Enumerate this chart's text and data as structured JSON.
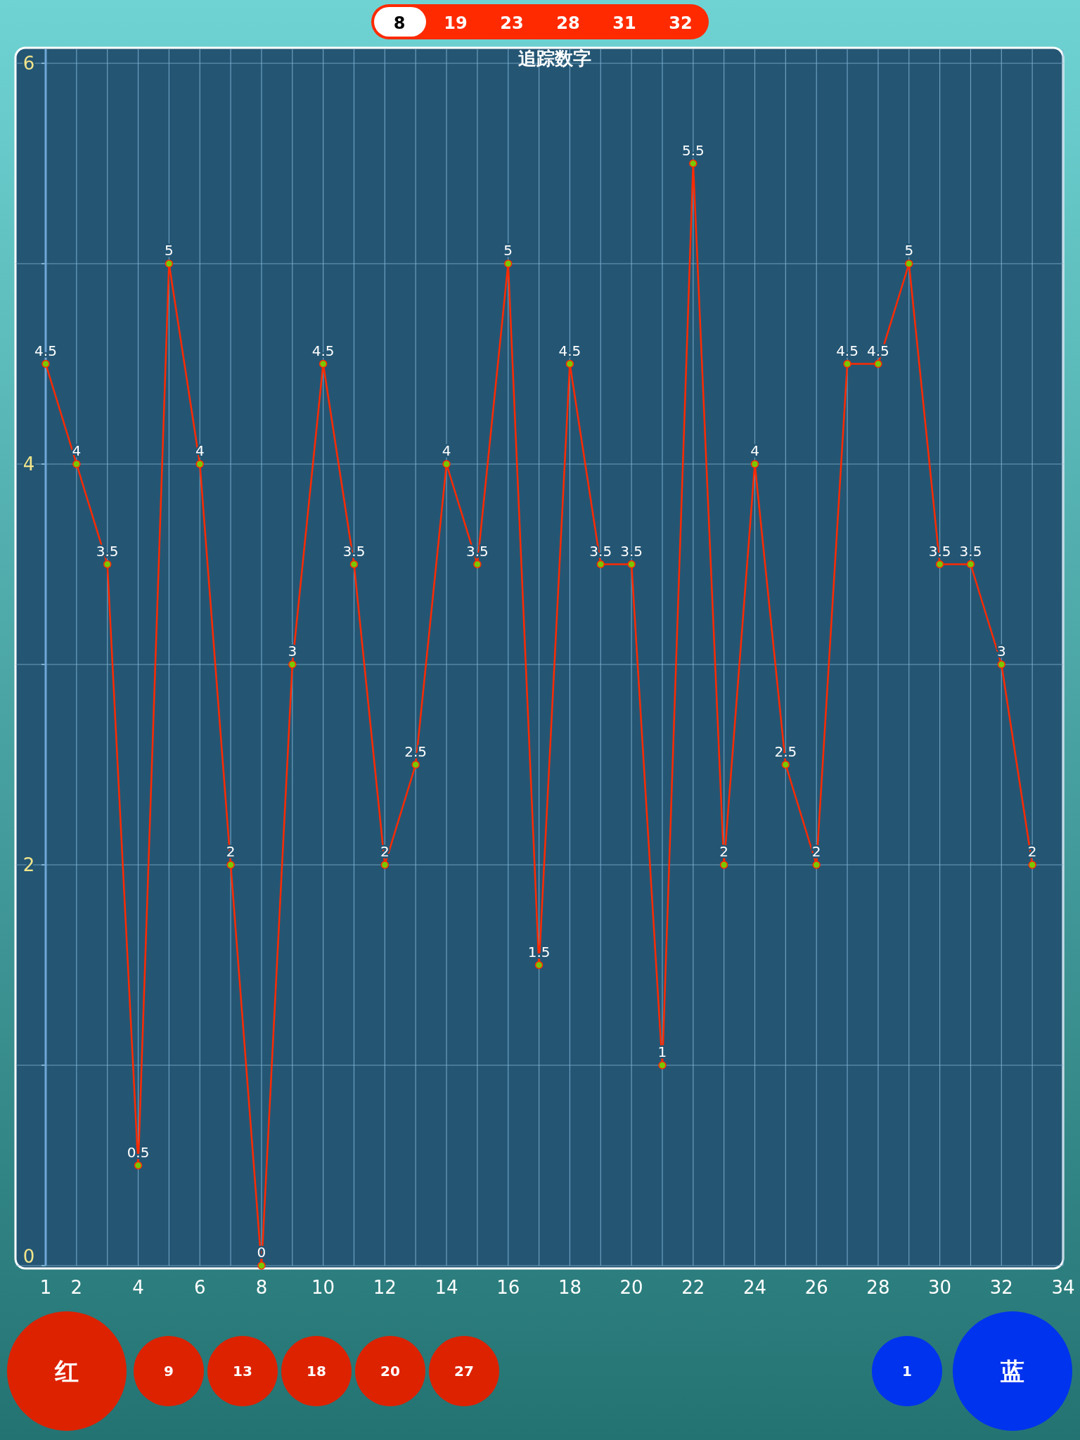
{
  "chart_data": {
    "type": "line",
    "title": "追踪数字",
    "x": [
      1,
      2,
      3,
      4,
      5,
      6,
      7,
      8,
      9,
      10,
      11,
      12,
      13,
      14,
      15,
      16,
      17,
      18,
      19,
      20,
      21,
      22,
      23,
      24,
      25,
      26,
      27,
      28,
      29,
      30,
      31,
      32,
      33
    ],
    "series": [
      {
        "color": "#ff2a00",
        "values": [
          4.5,
          4,
          3.5,
          0.5,
          5,
          4,
          2,
          0,
          3,
          4.5,
          3.5,
          2,
          2.5,
          4,
          3.5,
          5,
          1.5,
          4.5,
          3.5,
          3.5,
          1,
          5.5,
          2,
          4,
          2.5,
          2,
          4.5,
          4.5,
          5,
          3.5,
          3.5,
          3,
          2
        ]
      }
    ],
    "xlim": [
      1,
      34
    ],
    "xticks": [
      1,
      2,
      {
        "value": 3,
        "label": null
      },
      4,
      {
        "value": 5,
        "label": null
      },
      6,
      {
        "value": 7,
        "label": null
      },
      8,
      {
        "value": 9,
        "label": null
      },
      10,
      {
        "value": 11,
        "label": null
      },
      12,
      {
        "value": 13,
        "label": null
      },
      14,
      {
        "value": 15,
        "label": null
      },
      16,
      {
        "value": 17,
        "label": null
      },
      18,
      {
        "value": 19,
        "label": null
      },
      20,
      {
        "value": 21,
        "label": null
      },
      22,
      {
        "value": 23,
        "label": null
      },
      24,
      {
        "value": 25,
        "label": null
      },
      26,
      {
        "value": 27,
        "label": null
      },
      28,
      {
        "value": 29,
        "label": null
      },
      30,
      {
        "value": 31,
        "label": null
      },
      32,
      {
        "value": 33,
        "label": null
      },
      34
    ],
    "ylim": [
      0,
      6
    ],
    "yticks": [
      0,
      {
        "value": 1,
        "label": null
      },
      2,
      {
        "value": 3,
        "label": null
      },
      4,
      {
        "value": 5,
        "label": null
      },
      6
    ],
    "grid": true,
    "marker": "circle",
    "data_labels": true,
    "line_style": "solid",
    "annotations": [
      "8",
      "19",
      "23",
      "28",
      "31",
      "32",
      "红",
      "9",
      "13",
      "18",
      "20",
      "27",
      "1",
      "蓝"
    ]
  }
}
